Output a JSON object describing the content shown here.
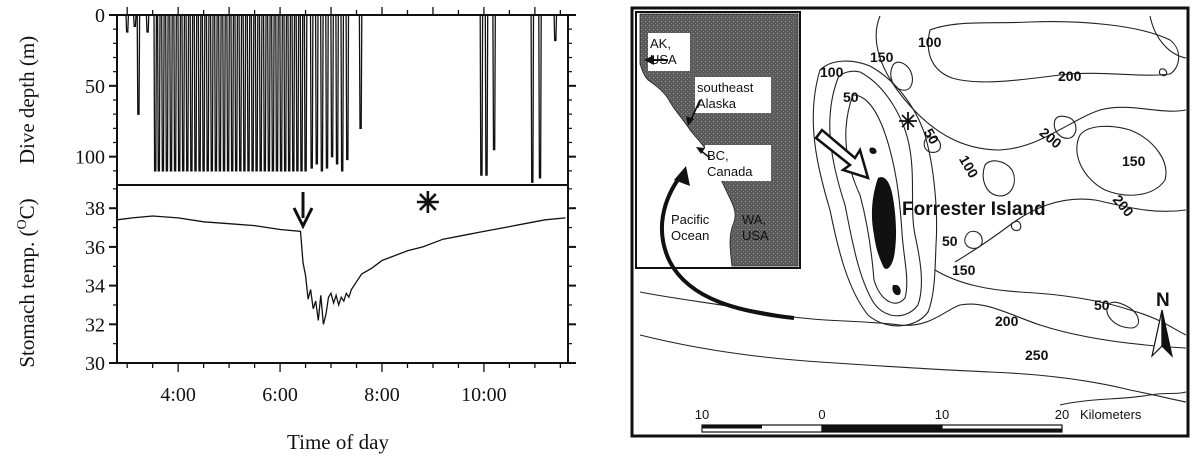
{
  "chart_data": [
    {
      "type": "line",
      "panel": "dive-depth",
      "ylabel": "Dive depth (m)",
      "xlim_hours": [
        2.8,
        11.65
      ],
      "ylim": [
        0,
        120
      ],
      "y_inverted": true,
      "yticks": [
        0,
        50,
        100
      ],
      "series": [
        {
          "x": [
            3.0,
            3.15,
            3.22,
            3.4,
            3.55,
            3.62,
            3.7,
            3.78,
            3.86,
            3.94,
            4.02,
            4.1,
            4.18,
            4.26,
            4.34,
            4.42,
            4.5,
            4.58,
            4.66,
            4.74,
            4.82,
            4.9,
            4.98,
            5.06,
            5.14,
            5.22,
            5.3,
            5.38,
            5.46,
            5.54,
            5.62,
            5.7,
            5.78,
            5.86,
            5.94,
            6.02,
            6.1,
            6.18,
            6.26,
            6.34,
            6.42,
            6.5,
            6.62,
            6.72,
            6.82,
            6.92,
            7.02,
            7.12,
            7.22,
            7.32,
            7.58,
            9.95,
            10.05,
            10.2,
            10.95,
            11.1,
            11.4
          ],
          "y": [
            12,
            8,
            70,
            12,
            110,
            110,
            110,
            110,
            110,
            110,
            110,
            110,
            110,
            110,
            110,
            110,
            110,
            110,
            110,
            110,
            110,
            110,
            110,
            110,
            110,
            110,
            110,
            110,
            110,
            110,
            110,
            110,
            110,
            110,
            110,
            110,
            110,
            110,
            110,
            110,
            110,
            110,
            108,
            105,
            110,
            108,
            100,
            105,
            110,
            102,
            80,
            113,
            113,
            95,
            118,
            115,
            18
          ]
        }
      ]
    },
    {
      "type": "line",
      "panel": "stomach-temperature",
      "xlabel": "Time of day",
      "ylabel": "Stomach temp. (°C)",
      "ylabel_lead": "Stomach temp. (",
      "ylabel_degree": "O",
      "ylabel_tail": "C)",
      "xlim_hours": [
        2.8,
        11.65
      ],
      "ylim": [
        30,
        39.2
      ],
      "yticks": [
        30,
        32,
        34,
        36,
        38
      ],
      "xticks": [
        {
          "hour": 4,
          "label": "4:00"
        },
        {
          "hour": 6,
          "label": "6:00"
        },
        {
          "hour": 8,
          "label": "8:00"
        },
        {
          "hour": 10,
          "label": "10:00"
        }
      ],
      "series": [
        {
          "x": [
            2.8,
            3.1,
            3.5,
            4.0,
            4.5,
            5.0,
            5.5,
            6.0,
            6.4,
            6.45,
            6.5,
            6.55,
            6.6,
            6.65,
            6.7,
            6.75,
            6.8,
            6.85,
            6.9,
            6.95,
            7.0,
            7.05,
            7.1,
            7.15,
            7.2,
            7.25,
            7.3,
            7.35,
            7.4,
            7.45,
            7.5,
            7.55,
            7.6,
            7.8,
            8.0,
            8.2,
            8.5,
            8.8,
            9.2,
            9.6,
            10.0,
            10.4,
            10.8,
            11.2,
            11.6
          ],
          "y": [
            37.4,
            37.5,
            37.6,
            37.5,
            37.3,
            37.2,
            37.1,
            36.9,
            36.8,
            35.2,
            34.5,
            33.3,
            33.8,
            32.8,
            33.2,
            32.2,
            33.5,
            32.0,
            32.5,
            33.4,
            33.6,
            33.1,
            33.5,
            33.0,
            33.4,
            33.2,
            33.6,
            33.4,
            33.8,
            34.0,
            34.2,
            34.4,
            34.6,
            34.9,
            35.3,
            35.5,
            35.8,
            36.0,
            36.4,
            36.6,
            36.8,
            37.0,
            37.2,
            37.4,
            37.5
          ]
        }
      ],
      "markers": [
        {
          "symbol": "arrow",
          "hour": 6.45,
          "label": ""
        },
        {
          "symbol": "asterisk",
          "hour": 8.9,
          "label": ""
        }
      ]
    }
  ],
  "map": {
    "inset_labels": {
      "ak_line1": "AK,",
      "ak_line2": "USA",
      "se_line1": "southeast",
      "se_line2": "Alaska",
      "bc_line1": "BC,",
      "bc_line2": "Canada",
      "ocean_line1": "Pacific",
      "ocean_line2": "Ocean",
      "wa_line1": "WA,",
      "wa_line2": "USA"
    },
    "island_label": "Forrester Island",
    "contour_labels": [
      "100",
      "150",
      "100",
      "200",
      "50",
      "50",
      "200",
      "100",
      "150",
      "200",
      "50",
      "150",
      "50",
      "200",
      "250"
    ],
    "north_label": "N",
    "scale": {
      "ticks": [
        "10",
        "0",
        "10",
        "20"
      ],
      "unit": "Kilometers"
    },
    "land_color": "#555555"
  }
}
